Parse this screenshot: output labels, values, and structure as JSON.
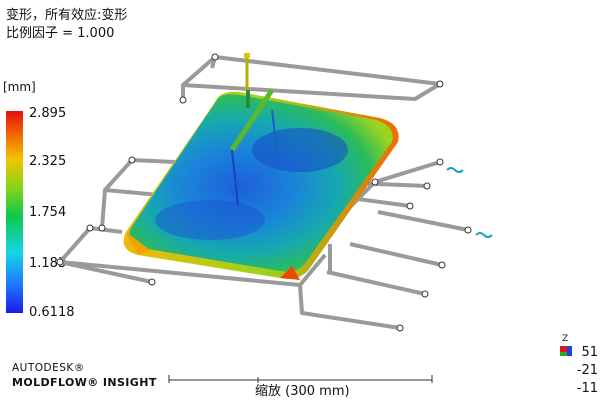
{
  "result": {
    "title_line1": "变形，所有效应:变形",
    "title_line2": "比例因子 = 1.000"
  },
  "legend": {
    "unit": "[mm]",
    "ticks": [
      "2.895",
      "2.325",
      "1.754",
      "1.183",
      "0.6118"
    ],
    "colors": [
      "#e41010",
      "#f26a00",
      "#f2c400",
      "#86d418",
      "#10c84a",
      "#16d4e8",
      "#1e78ff",
      "#1a1ae6"
    ]
  },
  "branding": {
    "line1": "AUTODESK®",
    "line2": "MOLDFLOW® INSIGHT"
  },
  "scale_bar": {
    "label": "缩放 (300 mm)"
  },
  "triad": {
    "labels": [
      "51",
      "-21",
      "-11"
    ],
    "axis": "Z"
  }
}
